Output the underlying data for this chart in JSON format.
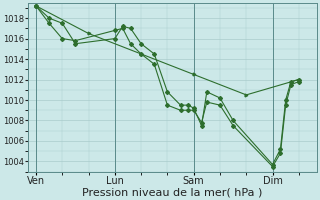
{
  "bg_color": "#cce8e8",
  "grid_color": "#aacccc",
  "line_color": "#2d6e2d",
  "marker_color": "#2d6e2d",
  "xlabel": "Pression niveau de la mer( hPa )",
  "xlabel_fontsize": 8,
  "ylim": [
    1003.0,
    1019.5
  ],
  "yticks": [
    1004,
    1006,
    1008,
    1010,
    1012,
    1014,
    1016,
    1018
  ],
  "xtick_labels": [
    "Ven",
    "Lun",
    "Sam",
    "Dim"
  ],
  "xtick_positions": [
    0,
    30,
    60,
    90
  ],
  "vline_positions": [
    0,
    30,
    60,
    90
  ],
  "xlim": [
    -3,
    107
  ],
  "series1_x": [
    0,
    5,
    10,
    15,
    30,
    33,
    36,
    40,
    45,
    50,
    55,
    58,
    60,
    63,
    65,
    70,
    75,
    90,
    93,
    95,
    97,
    100
  ],
  "series1_y": [
    1019.2,
    1018.0,
    1017.5,
    1015.5,
    1016.0,
    1017.2,
    1017.0,
    1015.5,
    1014.5,
    1010.8,
    1009.5,
    1009.5,
    1009.2,
    1007.5,
    1010.8,
    1010.2,
    1008.0,
    1003.7,
    1005.2,
    1010.0,
    1011.8,
    1012.0
  ],
  "series2_x": [
    0,
    5,
    10,
    15,
    30,
    33,
    36,
    40,
    45,
    50,
    55,
    58,
    60,
    63,
    65,
    70,
    75,
    90,
    93,
    95,
    97,
    100
  ],
  "series2_y": [
    1019.2,
    1017.5,
    1016.0,
    1015.8,
    1016.8,
    1017.0,
    1015.5,
    1014.5,
    1013.5,
    1009.5,
    1009.0,
    1009.0,
    1009.0,
    1007.8,
    1009.8,
    1009.5,
    1007.5,
    1003.5,
    1004.8,
    1009.5,
    1011.5,
    1011.8
  ],
  "series3_x": [
    0,
    20,
    40,
    60,
    80,
    100
  ],
  "series3_y": [
    1019.2,
    1016.5,
    1014.5,
    1012.5,
    1010.5,
    1012.0
  ],
  "figsize": [
    3.2,
    2.0
  ],
  "dpi": 100
}
